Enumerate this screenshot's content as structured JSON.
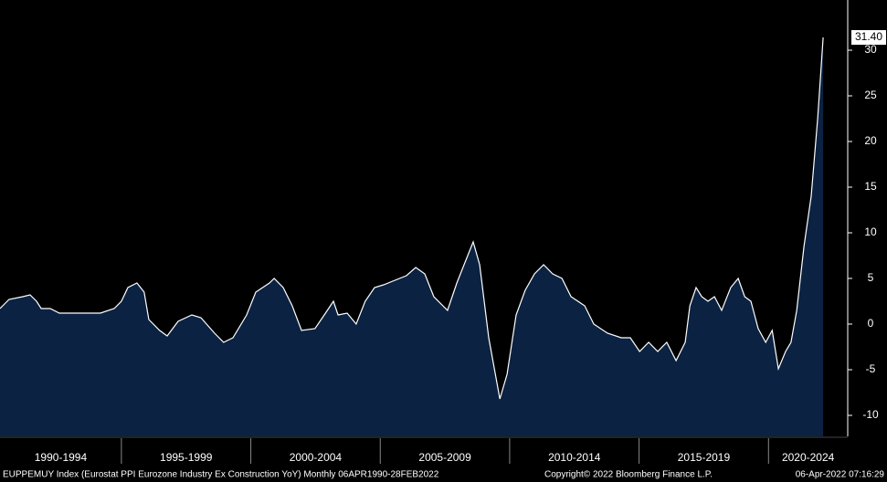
{
  "chart_data": {
    "type": "area",
    "series": [
      {
        "name": "EUPPEMUY Index",
        "color": "#0b2242",
        "line_color": "#ffffff",
        "x": [
          1990.31,
          1990.66,
          1991.19,
          1991.47,
          1991.72,
          1991.9,
          1992.25,
          1992.6,
          1993.13,
          1994.19,
          1994.72,
          1995.0,
          1995.25,
          1995.6,
          1995.88,
          1996.06,
          1996.48,
          1996.77,
          1997.19,
          1997.72,
          1998.07,
          1998.6,
          1998.95,
          1999.31,
          1999.84,
          2000.19,
          2000.72,
          2000.9,
          2001.25,
          2001.6,
          2001.96,
          2002.48,
          2002.84,
          2003.19,
          2003.37,
          2003.72,
          2004.07,
          2004.42,
          2004.78,
          2005.13,
          2005.48,
          2006.01,
          2006.37,
          2006.72,
          2007.07,
          2007.6,
          2007.96,
          2008.31,
          2008.59,
          2008.84,
          2009.19,
          2009.62,
          2009.9,
          2010.25,
          2010.6,
          2010.96,
          2011.31,
          2011.66,
          2012.02,
          2012.37,
          2012.9,
          2013.25,
          2013.78,
          2014.31,
          2014.66,
          2015.02,
          2015.37,
          2015.72,
          2016.07,
          2016.43,
          2016.78,
          2016.96,
          2017.2,
          2017.42,
          2017.66,
          2017.91,
          2018.19,
          2018.54,
          2018.83,
          2019.08,
          2019.32,
          2019.6,
          2019.89,
          2020.14,
          2020.38,
          2020.66,
          2020.87,
          2021.09,
          2021.37,
          2021.65,
          2021.9,
          2022.11
        ],
        "values": [
          1.7,
          2.7,
          3.0,
          3.2,
          2.5,
          1.7,
          1.7,
          1.2,
          1.2,
          1.2,
          1.7,
          2.5,
          4.0,
          4.5,
          3.5,
          0.5,
          -0.7,
          -1.3,
          0.3,
          1.0,
          0.7,
          -1.0,
          -2.0,
          -1.5,
          1.0,
          3.5,
          4.5,
          5.0,
          4.0,
          2.0,
          -0.7,
          -0.5,
          1.0,
          2.5,
          1.0,
          1.2,
          0.0,
          2.5,
          4.0,
          4.3,
          4.7,
          5.3,
          6.2,
          5.5,
          3.0,
          1.5,
          4.5,
          7.0,
          9.0,
          6.5,
          -1.5,
          -8.2,
          -5.5,
          1.0,
          3.7,
          5.5,
          6.5,
          5.5,
          5.0,
          3.0,
          2.0,
          0.0,
          -1.0,
          -1.5,
          -1.5,
          -3.0,
          -2.0,
          -3.0,
          -2.0,
          -4.0,
          -2.0,
          2.0,
          4.0,
          3.0,
          2.5,
          3.0,
          1.5,
          4.0,
          5.0,
          3.0,
          2.5,
          -0.5,
          -2.0,
          -0.7,
          -4.9,
          -3.0,
          -2.0,
          1.5,
          8.5,
          14.0,
          22.5,
          31.4
        ],
        "last_value_label": "31.40"
      }
    ],
    "xlim": [
      1990.31,
      2023.06
    ],
    "periods": [
      {
        "label": "1990-1994",
        "start": 1990,
        "end": 1995
      },
      {
        "label": "1995-1999",
        "start": 1995,
        "end": 2000
      },
      {
        "label": "2000-2004",
        "start": 2000,
        "end": 2005
      },
      {
        "label": "2005-2009",
        "start": 2005,
        "end": 2010
      },
      {
        "label": "2010-2014",
        "start": 2010,
        "end": 2015
      },
      {
        "label": "2015-2019",
        "start": 2015,
        "end": 2020
      },
      {
        "label": "2020-2024",
        "start": 2020,
        "end": 2025
      }
    ],
    "ylim": [
      -12.3,
      35.5
    ],
    "yticks": [
      -10,
      -5,
      0,
      5,
      10,
      15,
      20,
      25,
      30
    ],
    "footer": {
      "description": "EUPPEMUY Index (Eurostat PPI Eurozone Industry Ex Construction YoY)  Monthly 06APR1990-28FEB2022",
      "copyright": "Copyright© 2022 Bloomberg Finance L.P.",
      "timestamp": "06-Apr-2022 07:16:29"
    }
  }
}
